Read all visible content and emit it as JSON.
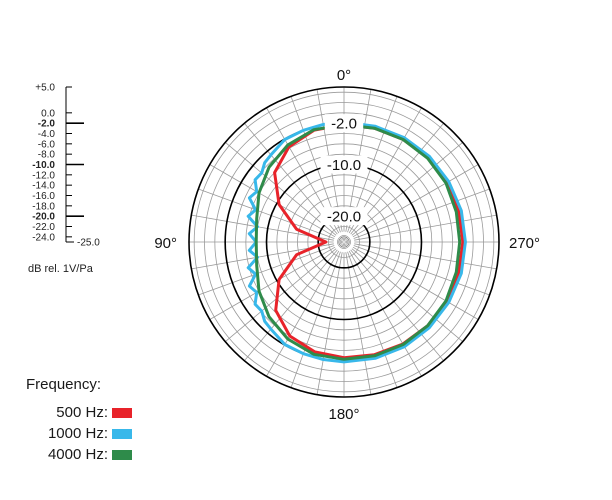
{
  "chart_data": {
    "type": "polar-line",
    "radial_axis": {
      "unit_label": "dB rel. 1V/Pa",
      "min": -25.0,
      "max": 5.0,
      "ticks": [
        "+5.0",
        "0.0",
        "-2.0",
        "-4.0",
        "-6.0",
        "-8.0",
        "-10.0",
        "-12.0",
        "-14.0",
        "-16.0",
        "-18.0",
        "-20.0",
        "-22.0",
        "-24.0"
      ],
      "bold_ticks": [
        "-2.0",
        "-10.0",
        "-20.0"
      ],
      "min_label": "-25.0",
      "ring_labels": [
        "-2.0",
        "-10.0",
        "-20.0"
      ]
    },
    "angular_axis": {
      "labels": [
        {
          "text": "0°",
          "angle": 0
        },
        {
          "text": "90°",
          "angle": 90
        },
        {
          "text": "180°",
          "angle": 180
        },
        {
          "text": "270°",
          "angle": 270
        }
      ],
      "spoke_step_deg": 10,
      "direction": "counterclockwise, 0° at top"
    },
    "series": [
      {
        "name": "500 Hz",
        "color": "#e8232a",
        "angles": [
          0,
          15,
          30,
          45,
          60,
          75,
          90,
          105,
          120,
          135,
          150,
          165,
          180,
          195,
          210,
          225,
          240,
          255,
          270,
          285,
          300,
          315,
          330,
          345,
          360
        ],
        "values": [
          -2.3,
          -2.6,
          -3.7,
          -6.0,
          -10.5,
          -15.5,
          -21.5,
          -15.5,
          -10.5,
          -6.3,
          -4.0,
          -3.0,
          -2.6,
          -2.4,
          -2.2,
          -2.1,
          -2.0,
          -2.0,
          -2.0,
          -2.0,
          -2.0,
          -2.0,
          -2.1,
          -2.2,
          -2.3
        ]
      },
      {
        "name": "1000 Hz",
        "color": "#38b8ea",
        "angles": [
          0,
          10,
          20,
          30,
          40,
          45,
          50,
          55,
          60,
          65,
          70,
          75,
          80,
          85,
          90,
          95,
          100,
          105,
          110,
          115,
          120,
          125,
          130,
          135,
          140,
          150,
          160,
          170,
          180,
          195,
          210,
          225,
          240,
          255,
          270,
          285,
          300,
          315,
          330,
          345,
          360
        ],
        "values": [
          -1.8,
          -1.9,
          -2.0,
          -2.1,
          -3.0,
          -3.3,
          -4.2,
          -4.0,
          -5.5,
          -4.8,
          -6.8,
          -5.8,
          -8.0,
          -6.6,
          -8.0,
          -6.6,
          -8.0,
          -5.8,
          -6.8,
          -4.8,
          -5.5,
          -4.0,
          -4.2,
          -3.3,
          -3.0,
          -2.1,
          -2.0,
          -1.9,
          -1.8,
          -1.7,
          -1.6,
          -1.6,
          -1.6,
          -1.5,
          -1.5,
          -1.5,
          -1.6,
          -1.6,
          -1.7,
          -1.8,
          -1.8
        ]
      },
      {
        "name": "4000 Hz",
        "color": "#2e8b4a",
        "angles": [
          0,
          15,
          30,
          45,
          60,
          75,
          90,
          105,
          120,
          135,
          150,
          165,
          180,
          195,
          210,
          225,
          240,
          255,
          270,
          285,
          300,
          315,
          330,
          345,
          360
        ],
        "values": [
          -2.3,
          -2.5,
          -3.3,
          -4.5,
          -6.0,
          -7.5,
          -8.0,
          -7.5,
          -6.0,
          -4.5,
          -3.3,
          -2.5,
          -2.3,
          -2.2,
          -2.1,
          -2.1,
          -2.2,
          -2.5,
          -2.6,
          -2.5,
          -2.2,
          -2.1,
          -2.1,
          -2.2,
          -2.3
        ]
      }
    ]
  },
  "legend": {
    "title": "Frequency:",
    "items": [
      {
        "label": "500 Hz:",
        "color": "#e8232a"
      },
      {
        "label": "1000 Hz:",
        "color": "#38b8ea"
      },
      {
        "label": "4000 Hz:",
        "color": "#2e8b4a"
      }
    ]
  }
}
